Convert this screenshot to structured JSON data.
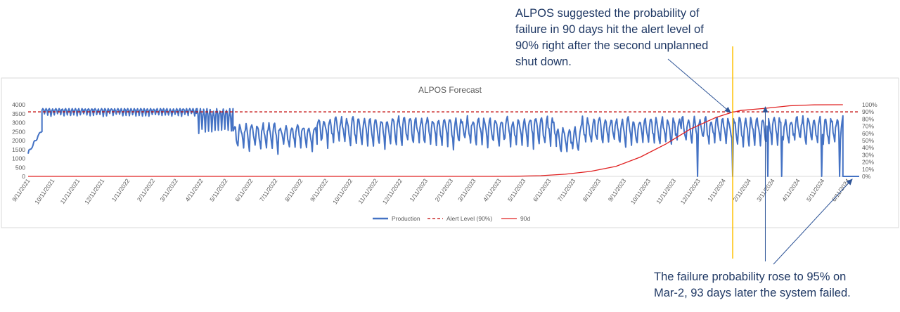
{
  "annotations": {
    "top": "ALPOS suggested the probability of\nfailure in 90 days hit the alert level of\n90% right after the second unplanned\nshut down.",
    "bottom": "The failure probability rose to 95% on\nMar-2, 93 days later the system failed."
  },
  "colors": {
    "production": "#4472c4",
    "alert": "#c00000",
    "prob90d": "#e02020",
    "vertical_marker": "#ffc000",
    "annotation_text": "#1f3864",
    "arrow": "#2f5597"
  },
  "chart_data": {
    "type": "line",
    "title": "ALPOS Forecast",
    "y_left": {
      "ticks": [
        0,
        500,
        1000,
        1500,
        2000,
        2500,
        3000,
        3500,
        4000
      ],
      "lim": [
        0,
        4000
      ]
    },
    "y_right": {
      "ticks": [
        "0%",
        "10%",
        "20%",
        "30%",
        "40%",
        "50%",
        "60%",
        "70%",
        "80%",
        "90%",
        "100%"
      ],
      "lim": [
        0,
        1
      ]
    },
    "x_range": [
      "2021-09-11",
      "2024-06-25"
    ],
    "x_tick_labels": [
      "9/11/2021",
      "10/11/2021",
      "11/11/2021",
      "12/11/2021",
      "1/11/2022",
      "2/11/2022",
      "3/11/2022",
      "4/11/2022",
      "5/11/2022",
      "6/11/2022",
      "7/11/2022",
      "8/11/2022",
      "9/11/2022",
      "10/11/2022",
      "11/11/2022",
      "12/11/2022",
      "1/11/2023",
      "2/11/2023",
      "3/11/2023",
      "4/11/2023",
      "5/11/2023",
      "6/11/2023",
      "7/11/2023",
      "8/11/2023",
      "9/11/2023",
      "10/11/2023",
      "11/11/2023",
      "12/11/2023",
      "1/11/2024",
      "2/11/2024",
      "3/11/2024",
      "4/11/2024",
      "5/11/2024",
      "6/11/2024"
    ],
    "legend": [
      "Production",
      "Alert Level (90%)",
      "90d"
    ],
    "legend_position": "bottom",
    "alert_level": 0.9,
    "series": [
      {
        "name": "Production",
        "axis": "left",
        "segments": [
          {
            "start": "2021-09-11",
            "end": "2021-09-28",
            "base": 1300,
            "base_end": 2600,
            "amp": 80,
            "period": 6,
            "dips": 0
          },
          {
            "start": "2021-09-28",
            "end": "2022-04-05",
            "base": 3680,
            "amp": 120,
            "period": 4,
            "dips": 150
          },
          {
            "start": "2022-04-05",
            "end": "2022-05-20",
            "base": 3400,
            "amp": 350,
            "period": 4,
            "dips": 500
          },
          {
            "start": "2022-05-20",
            "end": "2022-08-31",
            "base": 2400,
            "amp": 450,
            "period": 7,
            "dips": 500
          },
          {
            "start": "2022-08-31",
            "end": "2023-06-20",
            "base": 2700,
            "amp": 500,
            "period": 7,
            "dips": 500
          },
          {
            "start": "2023-06-20",
            "end": "2023-07-20",
            "base": 2200,
            "amp": 500,
            "period": 7,
            "dips": 400
          },
          {
            "start": "2023-07-20",
            "end": "2023-11-20",
            "base": 2700,
            "amp": 500,
            "period": 7,
            "dips": 400
          },
          {
            "start": "2023-11-20",
            "end": "2024-06-05",
            "base": 2700,
            "amp": 500,
            "period": 7,
            "dips": 400
          },
          {
            "start": "2024-06-05",
            "end": "2024-06-25",
            "base": 0,
            "amp": 0,
            "period": 7,
            "dips": 0
          }
        ],
        "outages": [
          {
            "date": "2023-12-10",
            "value": 0
          },
          {
            "date": "2024-01-22",
            "value": 0
          },
          {
            "date": "2024-03-05",
            "value": 0
          },
          {
            "date": "2024-03-22",
            "value": 0
          },
          {
            "date": "2024-05-10",
            "value": 0
          },
          {
            "date": "2024-06-01",
            "value": 0
          }
        ]
      },
      {
        "name": "Alert Level (90%)",
        "axis": "right",
        "value": 0.9
      },
      {
        "name": "90d",
        "axis": "right",
        "points": [
          [
            "2021-09-11",
            0
          ],
          [
            "2023-04-01",
            0
          ],
          [
            "2023-05-01",
            0.002
          ],
          [
            "2023-06-01",
            0.01
          ],
          [
            "2023-07-01",
            0.03
          ],
          [
            "2023-08-01",
            0.07
          ],
          [
            "2023-09-01",
            0.14
          ],
          [
            "2023-10-01",
            0.27
          ],
          [
            "2023-11-01",
            0.45
          ],
          [
            "2023-12-01",
            0.66
          ],
          [
            "2024-01-01",
            0.82
          ],
          [
            "2024-01-20",
            0.89
          ],
          [
            "2024-02-01",
            0.92
          ],
          [
            "2024-03-02",
            0.95
          ],
          [
            "2024-04-01",
            0.985
          ],
          [
            "2024-05-01",
            0.998
          ],
          [
            "2024-06-05",
            1.0
          ]
        ]
      }
    ],
    "marker_date": "2024-01-22",
    "callout_date": "2024-03-02"
  }
}
